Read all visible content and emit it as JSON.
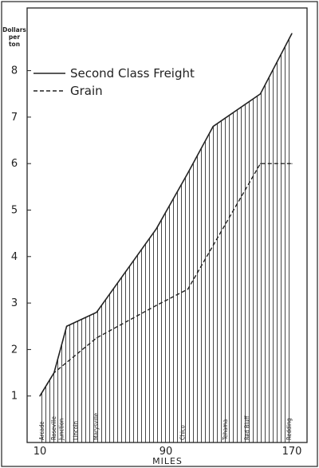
{
  "chart_data": {
    "type": "area",
    "title": "",
    "xlabel": "MILES",
    "ylabel": "Dollars per ton",
    "ylabel_lines": [
      "Dollars",
      "per",
      "ton"
    ],
    "xlim": [
      10,
      170
    ],
    "ylim": [
      0,
      9.2
    ],
    "x_ticks": [
      10,
      90,
      170
    ],
    "y_ticks": [
      1,
      2,
      3,
      4,
      5,
      6,
      7,
      8
    ],
    "grid": false,
    "legend_position": "top-left",
    "series": [
      {
        "name": "Second Class Freight",
        "style": "solid",
        "shaded": true,
        "x": [
          10,
          19,
          27,
          46,
          84,
          104,
          120,
          150,
          170
        ],
        "y": [
          1.0,
          1.5,
          2.5,
          2.8,
          4.6,
          5.8,
          6.8,
          7.5,
          8.8
        ]
      },
      {
        "name": "Grain",
        "style": "dashed",
        "shaded": false,
        "x": [
          10,
          19,
          46,
          84,
          104,
          150,
          170
        ],
        "y": [
          1.0,
          1.5,
          2.25,
          2.95,
          3.3,
          6.0,
          6.0
        ]
      }
    ],
    "stations": [
      {
        "name": "Arcade",
        "x": 10
      },
      {
        "name": "Roseville",
        "x": 19
      },
      {
        "name": "Junction",
        "x": 24
      },
      {
        "name": "Lincoln",
        "x": 33
      },
      {
        "name": "Marysville",
        "x": 46
      },
      {
        "name": "Chico",
        "x": 101
      },
      {
        "name": "Tehama",
        "x": 128
      },
      {
        "name": "Red Bluff",
        "x": 142
      },
      {
        "name": "Redding",
        "x": 170
      }
    ]
  },
  "colors": {
    "ink": "#222222",
    "background": "#ffffff",
    "hatch": "#333333"
  }
}
